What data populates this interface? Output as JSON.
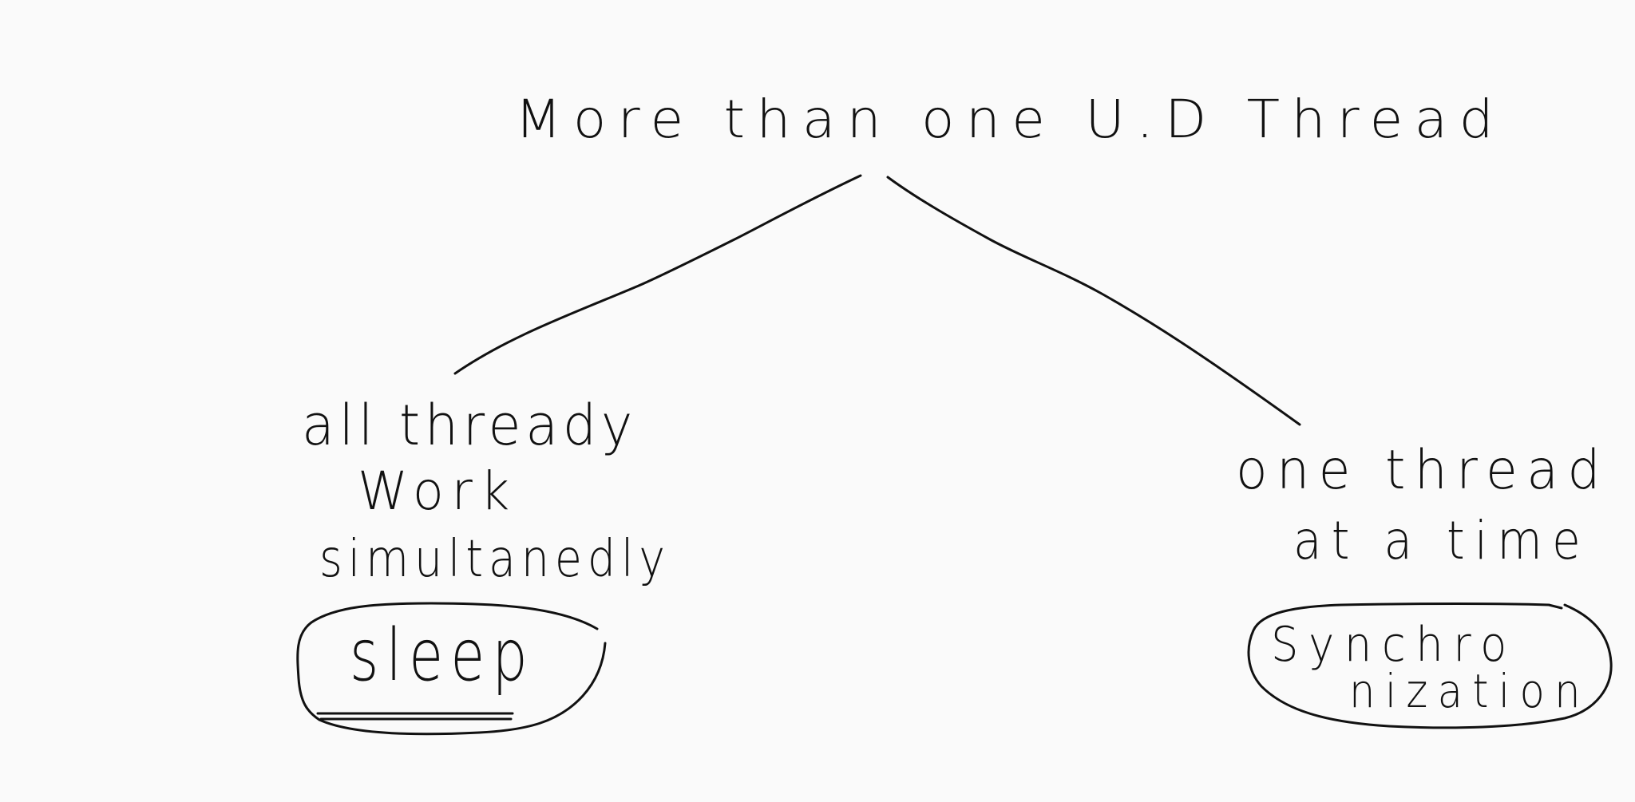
{
  "diagram": {
    "root": {
      "label": "More than one U.D Thread"
    },
    "branches": [
      {
        "id": "left",
        "lines": [
          "all thready",
          "Work",
          "simultanedly"
        ],
        "conclusion": "sleep"
      },
      {
        "id": "right",
        "lines": [
          "one thread",
          "at a time"
        ],
        "conclusion_lines": [
          "Synchro",
          "nization"
        ]
      }
    ],
    "colors": {
      "background": "#fafafa",
      "ink": "#111111"
    }
  }
}
